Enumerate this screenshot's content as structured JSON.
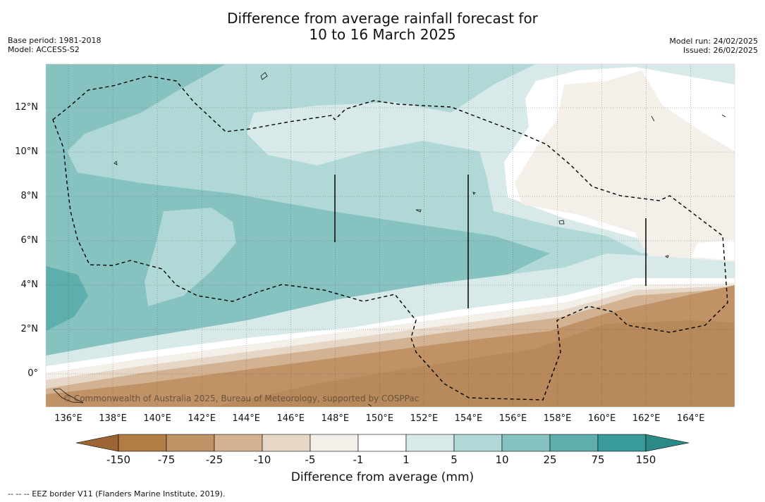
{
  "title": {
    "line1": "Difference from average rainfall forecast for",
    "line2": "10 to 16 March 2025"
  },
  "meta_left": {
    "base_period": "Base period: 1981-2018",
    "model": "Model: ACCESS-S2"
  },
  "meta_right": {
    "model_run": "Model run: 24/02/2025",
    "issued": "Issued: 26/02/2025"
  },
  "copyright": "© Commonwealth of Australia 2025, Bureau of Meteorology, supported by COSPPac",
  "longitude_labels": [
    "136°E",
    "138°E",
    "140°E",
    "142°E",
    "144°E",
    "146°E",
    "148°E",
    "150°E",
    "152°E",
    "154°E",
    "156°E",
    "158°E",
    "160°E",
    "162°E",
    "164°E"
  ],
  "latitude_labels": [
    "12°N",
    "10°N",
    "8°N",
    "6°N",
    "4°N",
    "2°N",
    "0°"
  ],
  "colorbar": {
    "ticks": [
      "-150",
      "-75",
      "-25",
      "-10",
      "-5",
      "-1",
      "1",
      "5",
      "10",
      "25",
      "75",
      "150"
    ],
    "label": "Difference from average (mm)",
    "colors": [
      "#9e6534",
      "#b27c45",
      "#c09266",
      "#d3b292",
      "#e6d6c6",
      "#f5efea",
      "#ffffff",
      "#d7eae9",
      "#b0d8d6",
      "#86c2c0",
      "#5daeac",
      "#399b99",
      "#2a8a88"
    ]
  },
  "footer": "--  --  -- EEZ border V11 (Flanders Marine Institute, 2019)."
}
